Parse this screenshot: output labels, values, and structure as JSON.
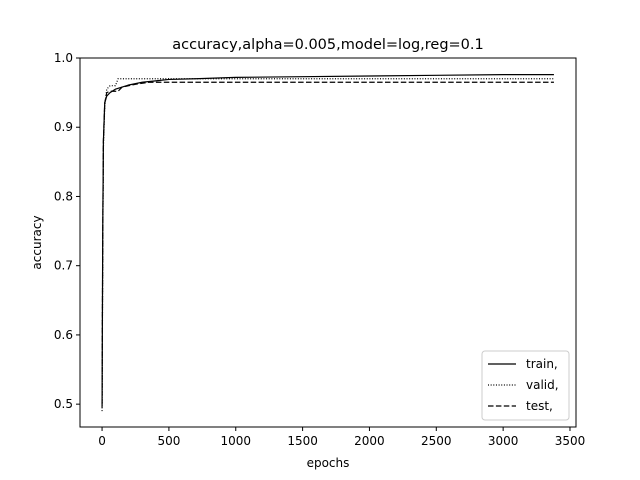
{
  "chart_data": {
    "type": "line",
    "title": "accuracy,alpha=0.005,model=log,reg=0.1",
    "xlabel": "epochs",
    "ylabel": "accuracy",
    "xlim": [
      -165,
      3545
    ],
    "ylim": [
      0.467,
      1.0
    ],
    "grid": false,
    "legend_placement": "lower-right",
    "xticks": [
      0,
      500,
      1000,
      1500,
      2000,
      2500,
      3000,
      3500
    ],
    "yticks": [
      0.5,
      0.6,
      0.7,
      0.8,
      0.9,
      1.0
    ],
    "xtick_labels": [
      "0",
      "500",
      "1000",
      "1500",
      "2000",
      "2500",
      "3000",
      "3500"
    ],
    "ytick_labels": [
      "0.5",
      "0.6",
      "0.7",
      "0.8",
      "0.9",
      "1.0"
    ],
    "series": [
      {
        "name": "train,",
        "style": "solid",
        "color": "#000000",
        "x": [
          0,
          5,
          10,
          20,
          35,
          60,
          100,
          150,
          200,
          300,
          400,
          500,
          700,
          1000,
          1500,
          2000,
          2500,
          3000,
          3380
        ],
        "y": [
          0.495,
          0.75,
          0.88,
          0.935,
          0.945,
          0.95,
          0.955,
          0.958,
          0.961,
          0.965,
          0.967,
          0.969,
          0.97,
          0.972,
          0.973,
          0.974,
          0.975,
          0.976,
          0.976
        ]
      },
      {
        "name": "valid,",
        "style": "dotted",
        "color": "#000000",
        "x": [
          0,
          5,
          10,
          20,
          35,
          60,
          100,
          120,
          200,
          300,
          500,
          1000,
          1500,
          2000,
          2500,
          3000,
          3380
        ],
        "y": [
          0.49,
          0.72,
          0.87,
          0.93,
          0.955,
          0.96,
          0.96,
          0.97,
          0.97,
          0.97,
          0.97,
          0.97,
          0.97,
          0.97,
          0.97,
          0.97,
          0.97
        ]
      },
      {
        "name": "test,",
        "style": "dashed",
        "color": "#000000",
        "x": [
          0,
          5,
          10,
          20,
          35,
          60,
          120,
          150,
          250,
          350,
          500,
          1000,
          1500,
          2000,
          2500,
          3000,
          3380
        ],
        "y": [
          0.5,
          0.74,
          0.88,
          0.935,
          0.95,
          0.952,
          0.952,
          0.958,
          0.962,
          0.965,
          0.965,
          0.965,
          0.965,
          0.965,
          0.965,
          0.965,
          0.965
        ]
      }
    ]
  }
}
